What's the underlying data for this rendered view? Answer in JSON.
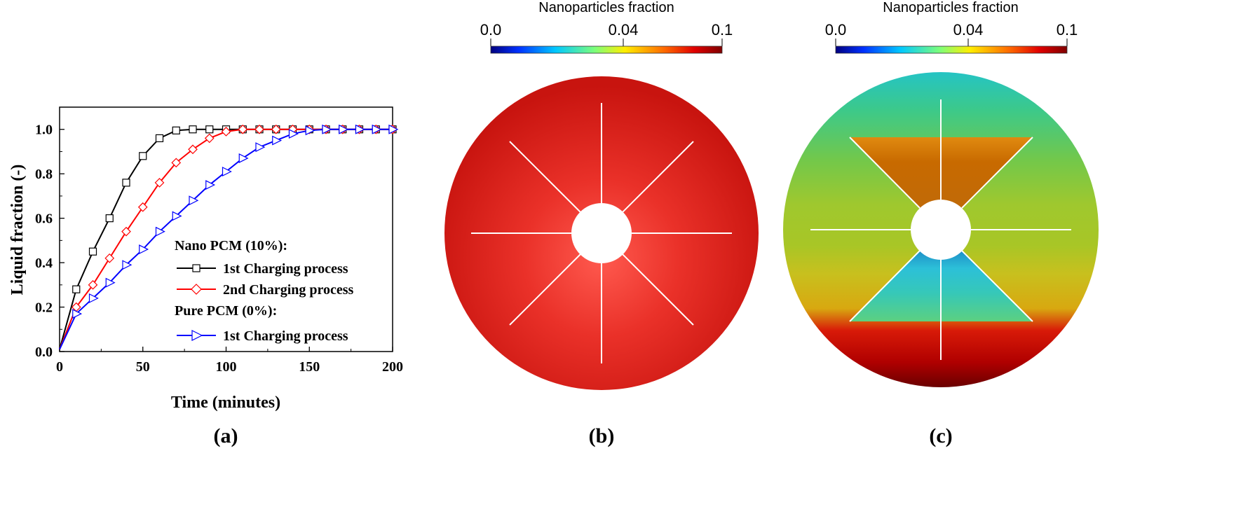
{
  "colors": {
    "black": "#000000",
    "red": "#ff0000",
    "blue": "#0000ff",
    "disc_b_base": "#d41c16",
    "disc_b_bright": "#ff4a40",
    "fin": "#ffffff"
  },
  "chart_data": {
    "type": "line",
    "panel_label": "(a)",
    "xlabel": "Time (minutes)",
    "ylabel": "Liquid fraction (-)",
    "xlim": [
      0,
      200
    ],
    "ylim": [
      0,
      1.1
    ],
    "xticks": [
      "0",
      "50",
      "100",
      "150",
      "200"
    ],
    "yticks": [
      "0.0",
      "0.2",
      "0.4",
      "0.6",
      "0.8",
      "1.0"
    ],
    "legend": {
      "group1_title": "Nano PCM (10%):",
      "group2_title": "Pure PCM (0%):"
    },
    "series": [
      {
        "name": "1st Charging process",
        "group": "Nano PCM (10%):",
        "marker": "square",
        "color": "#000000",
        "x": [
          0,
          10,
          20,
          30,
          40,
          50,
          60,
          70,
          80,
          90,
          100,
          110,
          120,
          130,
          140,
          150,
          160,
          170,
          180,
          190,
          200
        ],
        "y": [
          0.01,
          0.28,
          0.45,
          0.6,
          0.76,
          0.88,
          0.96,
          0.995,
          1.0,
          1.0,
          1.0,
          1.0,
          1.0,
          1.0,
          1.0,
          1.0,
          1.0,
          1.0,
          1.0,
          1.0,
          1.0
        ]
      },
      {
        "name": "2nd Charging process",
        "group": "Nano PCM (10%):",
        "marker": "diamond",
        "color": "#ff0000",
        "x": [
          0,
          10,
          20,
          30,
          40,
          50,
          60,
          70,
          80,
          90,
          100,
          110,
          120,
          130,
          140,
          150,
          160,
          170,
          180,
          190,
          200
        ],
        "y": [
          0.01,
          0.2,
          0.3,
          0.42,
          0.54,
          0.65,
          0.76,
          0.85,
          0.91,
          0.96,
          0.99,
          1.0,
          1.0,
          1.0,
          1.0,
          1.0,
          1.0,
          1.0,
          1.0,
          1.0,
          1.0
        ]
      },
      {
        "name": "1st Charging process",
        "group": "Pure PCM (0%):",
        "marker": "triangle-right",
        "color": "#0000ff",
        "x": [
          0,
          10,
          20,
          30,
          40,
          50,
          60,
          70,
          80,
          90,
          100,
          110,
          120,
          130,
          140,
          150,
          160,
          170,
          180,
          190,
          200
        ],
        "y": [
          0.01,
          0.17,
          0.24,
          0.31,
          0.39,
          0.46,
          0.54,
          0.61,
          0.68,
          0.75,
          0.81,
          0.87,
          0.92,
          0.95,
          0.98,
          0.995,
          1.0,
          1.0,
          1.0,
          1.0,
          1.0
        ]
      }
    ]
  },
  "panels": {
    "b": {
      "label": "(b)",
      "colorbar_title": "Nanoparticles fraction",
      "colorbar_ticks": [
        "0.0",
        "0.04",
        "0.1"
      ]
    },
    "c": {
      "label": "(c)",
      "colorbar_title": "Nanoparticles fraction",
      "colorbar_ticks": [
        "0.0",
        "0.04",
        "0.1"
      ]
    }
  }
}
